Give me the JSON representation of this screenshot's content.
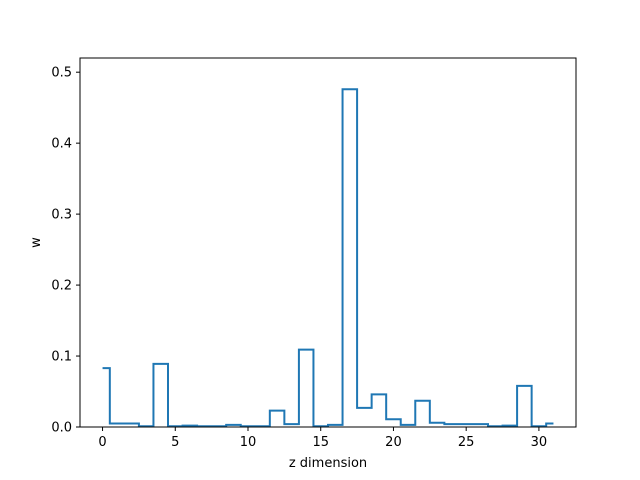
{
  "chart_data": {
    "type": "line",
    "step": "mid",
    "xlabel": "z dimension",
    "ylabel": "w",
    "xlim": [
      -1.55,
      32.55
    ],
    "ylim": [
      0,
      0.52
    ],
    "xticks": [
      0,
      5,
      10,
      15,
      20,
      25,
      30
    ],
    "yticks": [
      0.0,
      0.1,
      0.2,
      0.3,
      0.4,
      0.5
    ],
    "ytick_labels": [
      "0.0",
      "0.1",
      "0.2",
      "0.3",
      "0.4",
      "0.5"
    ],
    "grid": false,
    "color": "#1f77b4",
    "x": [
      0,
      1,
      2,
      3,
      4,
      5,
      6,
      7,
      8,
      9,
      10,
      11,
      12,
      13,
      14,
      15,
      16,
      17,
      18,
      19,
      20,
      21,
      22,
      23,
      24,
      25,
      26,
      27,
      28,
      29,
      30,
      31
    ],
    "values": [
      0.083,
      0.005,
      0.005,
      0.001,
      0.089,
      0.001,
      0.002,
      0.001,
      0.001,
      0.003,
      0.001,
      0.001,
      0.023,
      0.004,
      0.109,
      0.001,
      0.003,
      0.476,
      0.027,
      0.046,
      0.011,
      0.003,
      0.037,
      0.006,
      0.004,
      0.004,
      0.004,
      0.001,
      0.002,
      0.058,
      0.001,
      0.005
    ]
  }
}
